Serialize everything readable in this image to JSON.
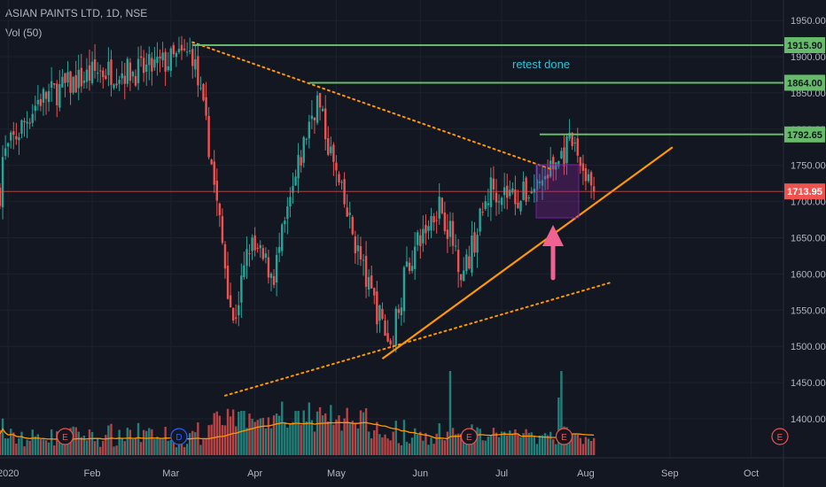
{
  "header": {
    "symbol": "ASIAN PAINTS LTD, 1D, NSE",
    "indicator": "Vol (50)"
  },
  "chart_data": {
    "type": "candlestick",
    "y_ticks": [
      "1400.00",
      "1450.00",
      "1500.00",
      "1550.00",
      "1600.00",
      "1650.00",
      "1700.00",
      "1750.00",
      "1800.00",
      "1850.00",
      "1900.00",
      "1950.00"
    ],
    "ylim": [
      1370,
      1980
    ],
    "x_ticks": [
      {
        "label": "2020",
        "day": 3
      },
      {
        "label": "Feb",
        "day": 34
      },
      {
        "label": "Mar",
        "day": 63
      },
      {
        "label": "Apr",
        "day": 94
      },
      {
        "label": "May",
        "day": 124
      },
      {
        "label": "Jun",
        "day": 155
      },
      {
        "label": "Jul",
        "day": 185
      },
      {
        "label": "Aug",
        "day": 216
      },
      {
        "label": "Sep",
        "day": 247
      },
      {
        "label": "Oct",
        "day": 277
      }
    ],
    "levels": [
      {
        "label": "1915.90",
        "value": 1915.9,
        "color": "#66bb6a"
      },
      {
        "label": "1864.00",
        "value": 1864.0,
        "color": "#66bb6a"
      },
      {
        "label": "1792.65",
        "value": 1792.65,
        "color": "#66bb6a"
      }
    ],
    "last_price": {
      "label": "1713.95",
      "value": 1713.95,
      "color": "#ef5350"
    },
    "annotation": "retest done",
    "key_prices": [
      {
        "day": 1,
        "value": 1760
      },
      {
        "day": 14,
        "value": 1840
      },
      {
        "day": 36,
        "value": 1880
      },
      {
        "day": 52,
        "value": 1880
      },
      {
        "day": 71,
        "value": 1905
      },
      {
        "day": 77,
        "value": 1780
      },
      {
        "day": 86,
        "value": 1530
      },
      {
        "day": 92,
        "value": 1640
      },
      {
        "day": 101,
        "value": 1600
      },
      {
        "day": 114,
        "value": 1810
      },
      {
        "day": 117,
        "value": 1840
      },
      {
        "day": 125,
        "value": 1720
      },
      {
        "day": 136,
        "value": 1580
      },
      {
        "day": 144,
        "value": 1500
      },
      {
        "day": 150,
        "value": 1610
      },
      {
        "day": 162,
        "value": 1700
      },
      {
        "day": 171,
        "value": 1600
      },
      {
        "day": 181,
        "value": 1720
      },
      {
        "day": 192,
        "value": 1705
      },
      {
        "day": 200,
        "value": 1730
      },
      {
        "day": 211,
        "value": 1780
      },
      {
        "day": 219,
        "value": 1714
      }
    ],
    "trendlines": [
      {
        "from": [
          71,
          1920
        ],
        "to": [
          203,
          1745
        ],
        "color": "#ff9800",
        "style": "dotted"
      },
      {
        "from": [
          83,
          1432
        ],
        "to": [
          225,
          1588
        ],
        "color": "#ff9800",
        "style": "dotted"
      },
      {
        "from": [
          141,
          1483
        ],
        "to": [
          248,
          1775
        ],
        "color": "#ff9800",
        "style": "solid"
      }
    ],
    "events": [
      {
        "day": 24,
        "label": "E"
      },
      {
        "day": 66,
        "label": "D"
      },
      {
        "day": 173,
        "label": "E"
      },
      {
        "day": 208,
        "label": "E"
      },
      {
        "day": 305,
        "label": "E"
      }
    ]
  }
}
